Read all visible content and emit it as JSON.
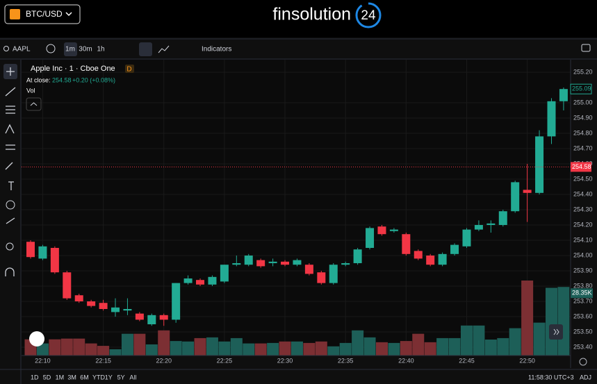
{
  "header": {
    "symbol": "BTC/USD",
    "brand": "finsolution",
    "brand_number": "24"
  },
  "toolbar": {
    "symbol": "AAPL",
    "intervals": [
      "1m",
      "30m",
      "1h"
    ],
    "indicators": "Indicators"
  },
  "legend": {
    "title": "Apple Inc · 1 · Cboe One",
    "badge": "D",
    "at_close": "At close:",
    "change": "+0.20 (+0.08%)",
    "volume": "Vol"
  },
  "footer": {
    "ranges": [
      "1D",
      "5D",
      "1M",
      "3M",
      "6M",
      "YTD",
      "1Y",
      "5Y",
      "All"
    ],
    "time": "11:58:30 UTC+3",
    "adj": "ADJ"
  },
  "chart_data": {
    "type": "candlestick",
    "categories": [
      null,
      "22:10",
      null,
      null,
      null,
      null,
      "22:15",
      null,
      null,
      null,
      null,
      "22:20",
      null,
      null,
      null,
      null,
      "22:25",
      null,
      null,
      null,
      null,
      "22:30",
      null,
      null,
      null,
      null,
      "22:35",
      null,
      null,
      null,
      null,
      "22:40",
      null,
      null,
      null,
      null,
      "22:45",
      null,
      null,
      null,
      null,
      "22:50",
      null,
      null,
      null
    ],
    "open": [
      254.09,
      253.98,
      254.05,
      253.89,
      253.74,
      253.7,
      253.69,
      253.63,
      253.64,
      253.62,
      253.55,
      253.61,
      253.58,
      253.82,
      253.84,
      253.81,
      253.83,
      253.94,
      253.94,
      253.97,
      253.95,
      253.96,
      253.94,
      253.94,
      253.89,
      253.82,
      253.94,
      253.95,
      254.05,
      254.19,
      254.16,
      254.14,
      254.03,
      254.0,
      253.94,
      254.01,
      254.06,
      254.17,
      254.2,
      254.2,
      254.29,
      254.43,
      254.41,
      254.78,
      255.01
    ],
    "high": [
      254.1,
      254.07,
      254.06,
      253.9,
      253.75,
      253.71,
      253.71,
      253.72,
      253.72,
      253.63,
      253.62,
      253.62,
      253.82,
      253.87,
      253.85,
      253.87,
      253.94,
      254.0,
      254.01,
      253.98,
      253.98,
      253.97,
      253.98,
      253.95,
      253.9,
      253.95,
      253.96,
      254.05,
      254.19,
      254.2,
      254.18,
      254.15,
      254.04,
      254.01,
      254.02,
      254.08,
      254.18,
      254.23,
      254.23,
      254.3,
      254.49,
      254.6,
      254.82,
      255.03,
      255.1
    ],
    "low": [
      253.98,
      253.97,
      253.88,
      253.71,
      253.69,
      253.66,
      253.64,
      253.6,
      253.61,
      253.57,
      253.54,
      253.54,
      253.56,
      253.81,
      253.8,
      253.8,
      253.82,
      253.93,
      253.93,
      253.92,
      253.93,
      253.93,
      253.93,
      253.87,
      253.81,
      253.81,
      253.93,
      253.94,
      254.04,
      254.13,
      254.15,
      254.0,
      253.97,
      253.93,
      253.93,
      254.0,
      254.05,
      254.16,
      254.15,
      254.19,
      254.28,
      254.22,
      254.4,
      254.73,
      254.95
    ],
    "close": [
      253.99,
      254.06,
      253.89,
      253.72,
      253.7,
      253.67,
      253.65,
      253.66,
      253.65,
      253.58,
      253.61,
      253.58,
      253.82,
      253.85,
      253.81,
      253.86,
      253.94,
      253.95,
      254.0,
      253.93,
      253.96,
      253.94,
      253.97,
      253.88,
      253.82,
      253.94,
      253.95,
      254.04,
      254.18,
      254.14,
      254.17,
      254.01,
      253.98,
      253.94,
      254.01,
      254.07,
      254.17,
      254.2,
      254.21,
      254.29,
      254.48,
      254.41,
      254.78,
      255.01,
      255.09
    ],
    "volume": [
      6.7,
      5,
      6.7,
      7,
      7,
      5,
      4,
      2.6,
      9,
      9,
      4.6,
      10.4,
      6,
      5.8,
      7.2,
      7.5,
      5.8,
      7.2,
      5,
      5,
      5.2,
      5.8,
      5.8,
      5.2,
      5.8,
      3.8,
      5.2,
      10.4,
      7.5,
      5.5,
      5.2,
      6,
      9,
      5.5,
      7.2,
      7.2,
      12.4,
      12.4,
      6.6,
      7.2,
      11.3,
      31,
      13.6,
      28,
      28.35
    ],
    "last_volume_label": "28.35K",
    "close_price": 254.58,
    "ylim": [
      253.4,
      255.2
    ],
    "yticks": [
      {
        "value": 253.4,
        "label": "253.40"
      },
      {
        "value": 253.5,
        "label": "253.50"
      },
      {
        "value": 253.6,
        "label": "253.60"
      },
      {
        "value": 253.7,
        "label": "253.70"
      },
      {
        "value": 253.8,
        "label": "253.80"
      },
      {
        "value": 253.9,
        "label": "253.90"
      },
      {
        "value": 254.0,
        "label": "254.00"
      },
      {
        "value": 254.1,
        "label": "254.10"
      },
      {
        "value": 254.2,
        "label": "254.20"
      },
      {
        "value": 254.3,
        "label": "254.30"
      },
      {
        "value": 254.4,
        "label": "254.40"
      },
      {
        "value": 254.5,
        "label": "254.50"
      },
      {
        "value": 254.6,
        "label": "254.60"
      },
      {
        "value": 254.7,
        "label": "254.70"
      },
      {
        "value": 254.8,
        "label": "254.80"
      },
      {
        "value": 254.9,
        "label": "254.90"
      },
      {
        "value": 255.0,
        "label": "255.00"
      },
      {
        "value": 255.2,
        "label": "255.20"
      }
    ],
    "up_color": "#22ab94",
    "down_color": "#f23645",
    "up_volume_color": "#1d5f58",
    "down_volume_color": "#7c2f33",
    "grid": true
  }
}
